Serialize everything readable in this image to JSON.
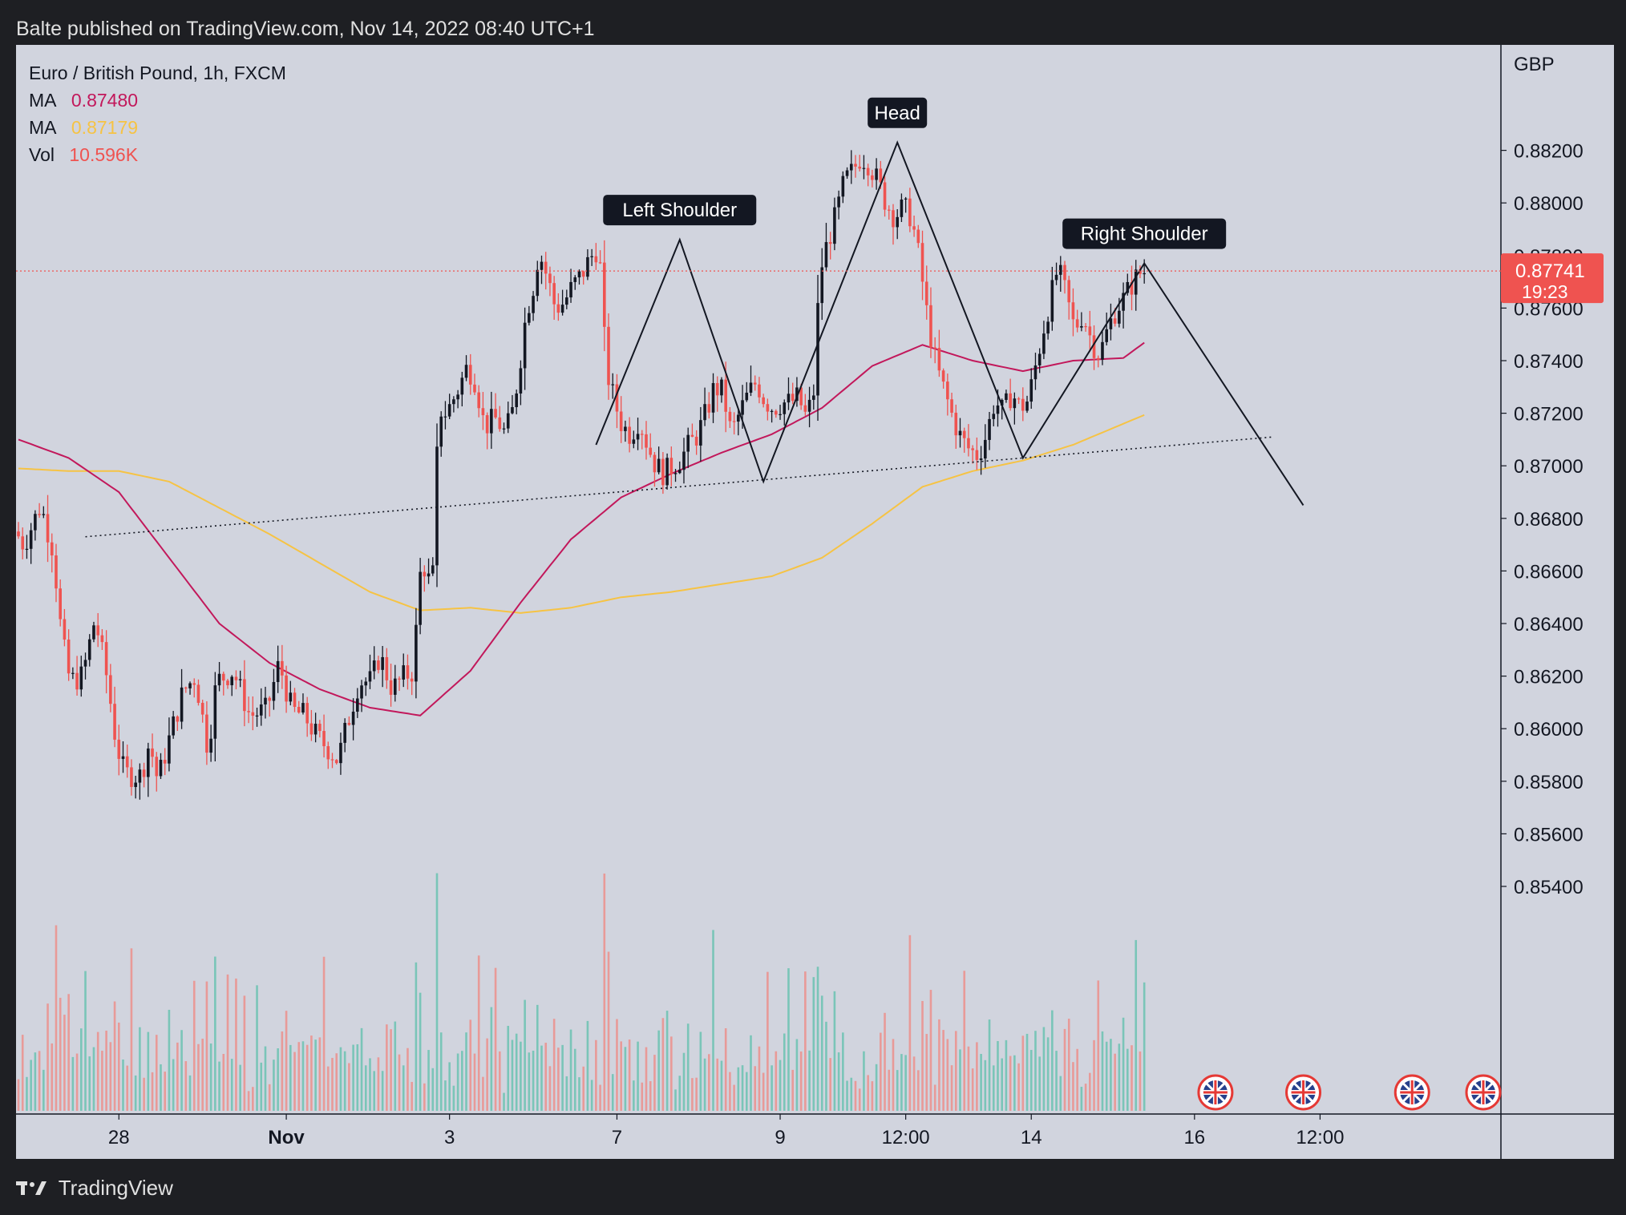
{
  "header": {
    "text": "Balte published on TradingView.com, Nov 14, 2022 08:40 UTC+1"
  },
  "legend": {
    "title": "Euro / British Pound, 1h, FXCM",
    "rows": [
      {
        "label": "MA",
        "value": "0.87480",
        "color": "#c2185b"
      },
      {
        "label": "MA",
        "value": "0.87179",
        "color": "#f6c344"
      },
      {
        "label": "Vol",
        "value": "10.596K",
        "color": "#ef5350"
      }
    ]
  },
  "footer": {
    "brand": "TradingView"
  },
  "chart_data": {
    "type": "candlestick",
    "currency": "GBP",
    "ylim": [
      0.854,
      0.884
    ],
    "yticks": [
      "0.88200",
      "0.88000",
      "0.87800",
      "0.87600",
      "0.87400",
      "0.87200",
      "0.87000",
      "0.86800",
      "0.86600",
      "0.86400",
      "0.86200",
      "0.86000",
      "0.85800",
      "0.85600",
      "0.85400"
    ],
    "xticks": [
      {
        "label": "28",
        "bold": false,
        "bar": 24
      },
      {
        "label": "Nov",
        "bold": true,
        "bar": 64
      },
      {
        "label": "3",
        "bold": false,
        "bar": 103
      },
      {
        "label": "7",
        "bold": false,
        "bar": 143
      },
      {
        "label": "9",
        "bold": false,
        "bar": 182
      },
      {
        "label": "12:00",
        "bold": false,
        "bar": 212
      },
      {
        "label": "14",
        "bold": false,
        "bar": 242
      },
      {
        "label": "16",
        "bold": false,
        "bar": 281
      },
      {
        "label": "12:00",
        "bold": false,
        "bar": 311
      }
    ],
    "current_price": {
      "value": 0.87741,
      "label": "0.87741",
      "countdown": "19:23",
      "color": "#ef5350"
    },
    "waypoints": [
      [
        0,
        0.8675
      ],
      [
        2,
        0.867
      ],
      [
        6,
        0.8685
      ],
      [
        9,
        0.8668
      ],
      [
        11,
        0.8635
      ],
      [
        13,
        0.8618
      ],
      [
        16,
        0.862
      ],
      [
        19,
        0.8642
      ],
      [
        22,
        0.8618
      ],
      [
        24,
        0.8595
      ],
      [
        26,
        0.8583
      ],
      [
        30,
        0.8582
      ],
      [
        32,
        0.8595
      ],
      [
        34,
        0.858
      ],
      [
        36,
        0.8592
      ],
      [
        40,
        0.8614
      ],
      [
        43,
        0.862
      ],
      [
        46,
        0.8592
      ],
      [
        48,
        0.8618
      ],
      [
        52,
        0.8622
      ],
      [
        56,
        0.8605
      ],
      [
        60,
        0.8607
      ],
      [
        63,
        0.8625
      ],
      [
        66,
        0.8607
      ],
      [
        69,
        0.8605
      ],
      [
        72,
        0.8597
      ],
      [
        75,
        0.8592
      ],
      [
        77,
        0.8588
      ],
      [
        79,
        0.86
      ],
      [
        82,
        0.8618
      ],
      [
        85,
        0.8618
      ],
      [
        87,
        0.8628
      ],
      [
        90,
        0.8615
      ],
      [
        93,
        0.862
      ],
      [
        95,
        0.8622
      ],
      [
        97,
        0.8665
      ],
      [
        99,
        0.8655
      ],
      [
        100,
        0.866
      ],
      [
        101,
        0.8722
      ],
      [
        103,
        0.872
      ],
      [
        106,
        0.873
      ],
      [
        108,
        0.8738
      ],
      [
        110,
        0.8732
      ],
      [
        112,
        0.8715
      ],
      [
        115,
        0.8718
      ],
      [
        117,
        0.8712
      ],
      [
        119,
        0.8722
      ],
      [
        121,
        0.8745
      ],
      [
        122,
        0.8758
      ],
      [
        124,
        0.877
      ],
      [
        125,
        0.8782
      ],
      [
        127,
        0.8772
      ],
      [
        129,
        0.876
      ],
      [
        131,
        0.8762
      ],
      [
        133,
        0.8768
      ],
      [
        135,
        0.8772
      ],
      [
        137,
        0.8778
      ],
      [
        139,
        0.8783
      ],
      [
        140,
        0.8772
      ],
      [
        141,
        0.8738
      ],
      [
        143,
        0.8725
      ],
      [
        145,
        0.8715
      ],
      [
        147,
        0.8712
      ],
      [
        149,
        0.8718
      ],
      [
        151,
        0.8708
      ],
      [
        153,
        0.87
      ],
      [
        155,
        0.8697
      ],
      [
        157,
        0.87
      ],
      [
        159,
        0.8703
      ],
      [
        161,
        0.8708
      ],
      [
        163,
        0.8712
      ],
      [
        165,
        0.872
      ],
      [
        167,
        0.873
      ],
      [
        169,
        0.8728
      ],
      [
        171,
        0.8712
      ],
      [
        173,
        0.872
      ],
      [
        175,
        0.8727
      ],
      [
        177,
        0.8732
      ],
      [
        179,
        0.8725
      ],
      [
        181,
        0.8722
      ],
      [
        183,
        0.8724
      ],
      [
        185,
        0.8724
      ],
      [
        187,
        0.8726
      ],
      [
        189,
        0.8718
      ],
      [
        191,
        0.873
      ],
      [
        192,
        0.8772
      ],
      [
        194,
        0.8785
      ],
      [
        196,
        0.8795
      ],
      [
        198,
        0.8808
      ],
      [
        200,
        0.8812
      ],
      [
        202,
        0.8818
      ],
      [
        204,
        0.8815
      ],
      [
        206,
        0.8808
      ],
      [
        208,
        0.88
      ],
      [
        210,
        0.8795
      ],
      [
        212,
        0.8798
      ],
      [
        214,
        0.8795
      ],
      [
        216,
        0.8778
      ],
      [
        218,
        0.8755
      ],
      [
        220,
        0.8738
      ],
      [
        222,
        0.8728
      ],
      [
        224,
        0.8718
      ],
      [
        226,
        0.871
      ],
      [
        228,
        0.8706
      ],
      [
        230,
        0.8704
      ],
      [
        232,
        0.8712
      ],
      [
        234,
        0.8725
      ],
      [
        236,
        0.872
      ],
      [
        238,
        0.8728
      ],
      [
        240,
        0.8722
      ],
      [
        242,
        0.8725
      ],
      [
        244,
        0.874
      ],
      [
        246,
        0.8755
      ],
      [
        248,
        0.8768
      ],
      [
        249,
        0.8775
      ],
      [
        251,
        0.8765
      ],
      [
        253,
        0.8752
      ],
      [
        255,
        0.8758
      ],
      [
        257,
        0.8748
      ],
      [
        259,
        0.8742
      ],
      [
        261,
        0.8752
      ],
      [
        263,
        0.876
      ],
      [
        265,
        0.8764
      ],
      [
        267,
        0.877
      ],
      [
        269,
        0.8774
      ]
    ],
    "ma_fast": [
      [
        0,
        0.871
      ],
      [
        12,
        0.8703
      ],
      [
        24,
        0.869
      ],
      [
        36,
        0.8665
      ],
      [
        48,
        0.864
      ],
      [
        60,
        0.8625
      ],
      [
        72,
        0.8615
      ],
      [
        84,
        0.8608
      ],
      [
        96,
        0.8605
      ],
      [
        108,
        0.8622
      ],
      [
        120,
        0.8648
      ],
      [
        132,
        0.8672
      ],
      [
        144,
        0.8688
      ],
      [
        156,
        0.8697
      ],
      [
        168,
        0.8705
      ],
      [
        180,
        0.8712
      ],
      [
        192,
        0.8722
      ],
      [
        204,
        0.8738
      ],
      [
        216,
        0.8746
      ],
      [
        228,
        0.874
      ],
      [
        240,
        0.8736
      ],
      [
        252,
        0.874
      ],
      [
        264,
        0.8741
      ],
      [
        270,
        0.8748
      ]
    ],
    "ma_slow": [
      [
        0,
        0.8699
      ],
      [
        12,
        0.8698
      ],
      [
        24,
        0.8698
      ],
      [
        36,
        0.8694
      ],
      [
        48,
        0.8684
      ],
      [
        60,
        0.8674
      ],
      [
        72,
        0.8663
      ],
      [
        84,
        0.8652
      ],
      [
        96,
        0.8645
      ],
      [
        108,
        0.8646
      ],
      [
        120,
        0.8644
      ],
      [
        132,
        0.8646
      ],
      [
        144,
        0.865
      ],
      [
        156,
        0.8652
      ],
      [
        168,
        0.8655
      ],
      [
        180,
        0.8658
      ],
      [
        192,
        0.8665
      ],
      [
        204,
        0.8678
      ],
      [
        216,
        0.8692
      ],
      [
        228,
        0.8698
      ],
      [
        240,
        0.8702
      ],
      [
        252,
        0.8708
      ],
      [
        264,
        0.8716
      ],
      [
        270,
        0.872
      ]
    ],
    "pattern_line": [
      [
        138,
        0.8708
      ],
      [
        158,
        0.8786
      ],
      [
        178,
        0.8694
      ],
      [
        210,
        0.8823
      ],
      [
        240,
        0.8703
      ],
      [
        269,
        0.8777
      ],
      [
        307,
        0.8685
      ]
    ],
    "neckline": [
      [
        16,
        0.8673
      ],
      [
        300,
        0.8711
      ]
    ],
    "annotations": [
      {
        "label": "Left Shoulder",
        "bar": 158,
        "price": 0.8786
      },
      {
        "label": "Head",
        "bar": 210,
        "price": 0.8823
      },
      {
        "label": "Right Shoulder",
        "bar": 269,
        "price": 0.8777
      }
    ],
    "event_flags": [
      286,
      307,
      333,
      350
    ]
  }
}
